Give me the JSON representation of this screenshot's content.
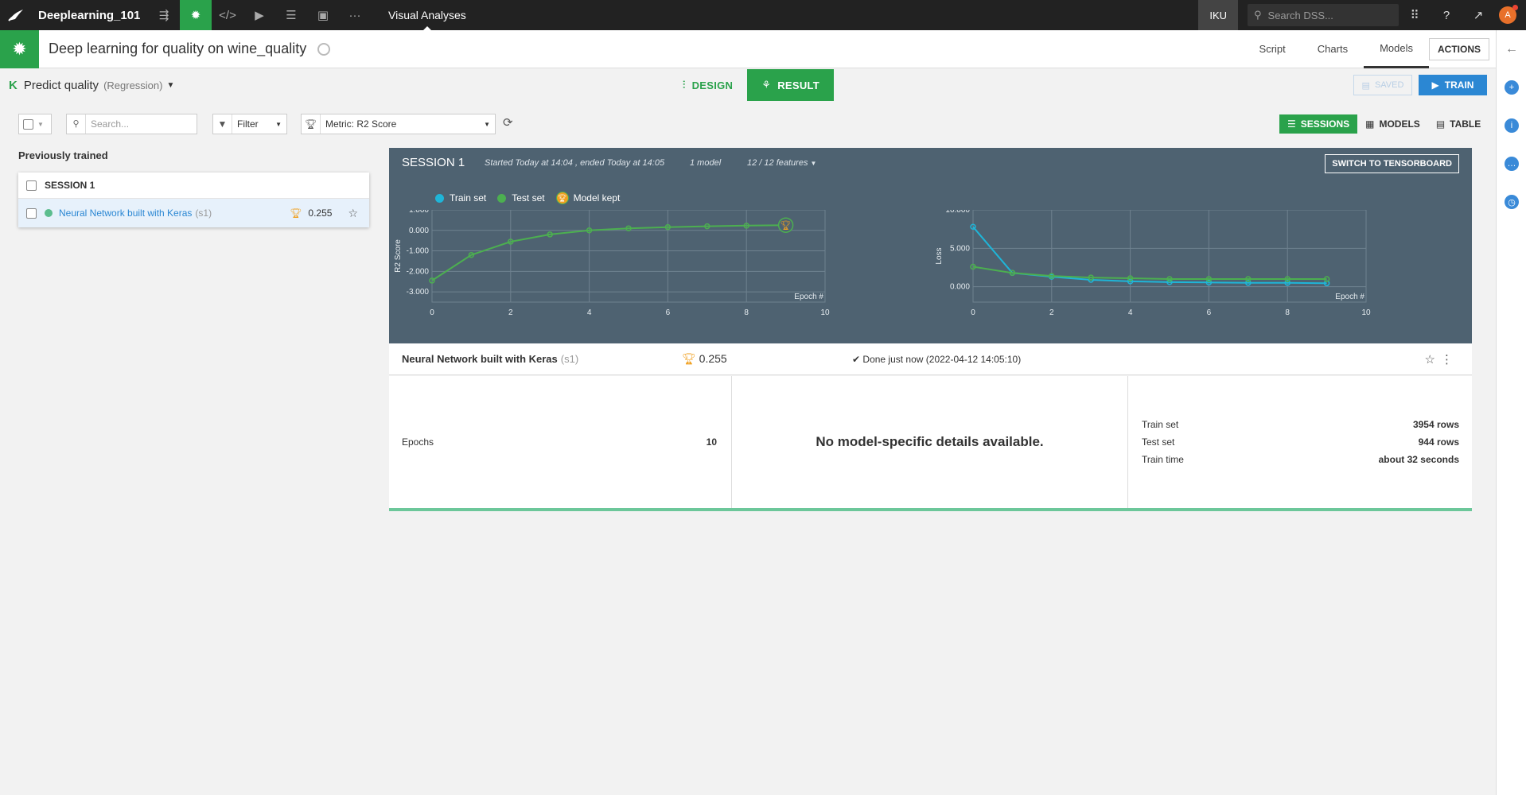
{
  "topnav": {
    "project": "Deeplearning_101",
    "title": "Visual Analyses",
    "instance": "IKU",
    "search_placeholder": "Search DSS...",
    "avatar": "A"
  },
  "header": {
    "title": "Deep learning for quality on wine_quality",
    "tabs": [
      "Script",
      "Charts",
      "Models"
    ],
    "active_tab": "Models",
    "actions_label": "ACTIONS"
  },
  "task": {
    "icon_letter": "K",
    "name": "Predict quality",
    "type": "(Regression)",
    "design_label": "DESIGN",
    "result_label": "RESULT",
    "saved_label": "SAVED",
    "train_label": "TRAIN"
  },
  "filters": {
    "search_placeholder": "Search...",
    "filter_label": "Filter",
    "metric_label": "Metric: R2 Score",
    "views": [
      "SESSIONS",
      "MODELS",
      "TABLE"
    ]
  },
  "left": {
    "heading": "Previously trained",
    "session_label": "SESSION 1",
    "model_name": "Neural Network built with Keras",
    "model_suffix": "(s1)",
    "model_score": "0.255"
  },
  "session": {
    "title": "SESSION 1",
    "time": "Started Today at 14:04 , ended Today at 14:05",
    "models": "1 model",
    "features": "12 / 12 features",
    "tensorboard_label": "SWITCH TO TENSORBOARD",
    "legend": [
      "Train set",
      "Test set",
      "Model kept"
    ]
  },
  "colors": {
    "train": "#1fb5d8",
    "test": "#4caf50",
    "accent": "#2aa24b",
    "kept": "#f0a020"
  },
  "chart_data": [
    {
      "type": "line",
      "title": "",
      "xlabel": "Epoch #",
      "ylabel": "R2 Score",
      "xlim": [
        0,
        10
      ],
      "ylim": [
        -3.5,
        1.0
      ],
      "yticks": [
        "1.000",
        "0.000",
        "-1.000",
        "-2.000",
        "-3.000"
      ],
      "xticks": [
        "0",
        "2",
        "4",
        "6",
        "8",
        "10"
      ],
      "series": [
        {
          "name": "Test set",
          "x": [
            0,
            1,
            2,
            3,
            4,
            5,
            6,
            7,
            8,
            9
          ],
          "values": [
            -2.45,
            -1.2,
            -0.55,
            -0.2,
            0.0,
            0.1,
            0.16,
            0.2,
            0.23,
            0.255
          ]
        }
      ],
      "kept_epoch": 9
    },
    {
      "type": "line",
      "title": "",
      "xlabel": "Epoch #",
      "ylabel": "Loss",
      "xlim": [
        0,
        10
      ],
      "ylim": [
        -2.0,
        10.0
      ],
      "yticks": [
        "10.000",
        "5.000",
        "0.000"
      ],
      "xticks": [
        "0",
        "2",
        "4",
        "6",
        "8",
        "10"
      ],
      "series": [
        {
          "name": "Train set",
          "x": [
            0,
            1,
            2,
            3,
            4,
            5,
            6,
            7,
            8,
            9
          ],
          "values": [
            7.8,
            1.8,
            1.3,
            0.9,
            0.7,
            0.6,
            0.55,
            0.5,
            0.5,
            0.45
          ]
        },
        {
          "name": "Test set",
          "x": [
            0,
            1,
            2,
            3,
            4,
            5,
            6,
            7,
            8,
            9
          ],
          "values": [
            2.6,
            1.8,
            1.4,
            1.2,
            1.1,
            1.0,
            1.0,
            1.0,
            1.0,
            1.0
          ]
        }
      ]
    }
  ],
  "model": {
    "name": "Neural Network built with Keras",
    "suffix": "(s1)",
    "score": "0.255",
    "status": "Done just now (2022-04-12 14:05:10)",
    "epochs_label": "Epochs",
    "epochs_value": "10",
    "no_details": "No model-specific details available.",
    "stats": [
      {
        "label": "Train set",
        "value": "3954 rows"
      },
      {
        "label": "Test set",
        "value": "944 rows"
      },
      {
        "label": "Train time",
        "value": "about 32 seconds"
      }
    ]
  }
}
